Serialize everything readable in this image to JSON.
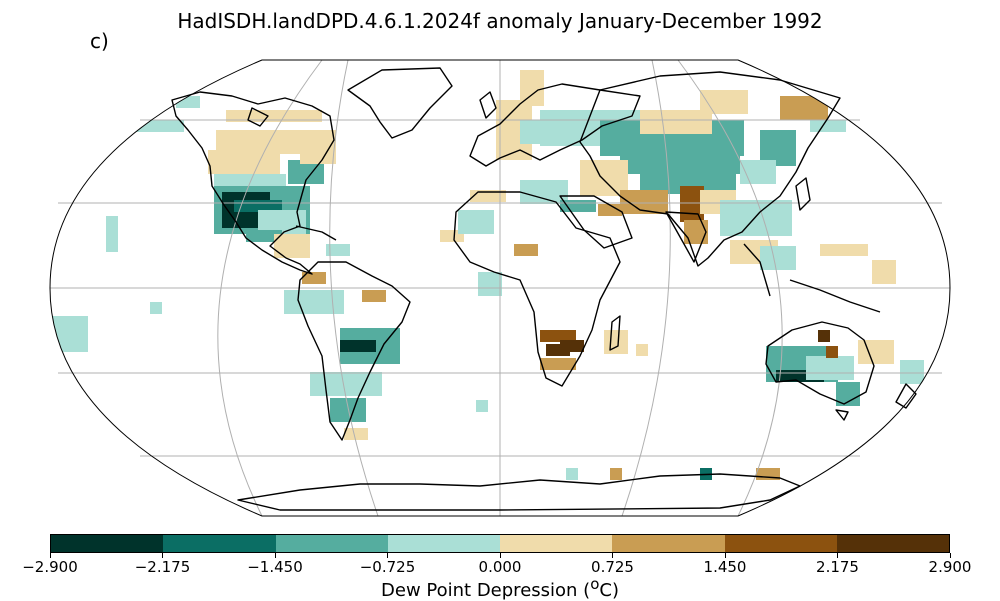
{
  "title": "HadISDH.landDPD.4.6.1.2024f anomaly January-December 1992",
  "panel_label": "c)",
  "colorbar": {
    "label_text": "Dew Point Depression (",
    "label_sup": "o",
    "label_unit": "C)",
    "ticks": [
      "−2.900",
      "−2.175",
      "−1.450",
      "−0.725",
      "0.000",
      "0.725",
      "1.450",
      "2.175",
      "2.900"
    ],
    "colors": [
      "#00332b",
      "#0b6e64",
      "#55ad9f",
      "#aadfd6",
      "#f0dcab",
      "#c99d53",
      "#8c520f",
      "#553108"
    ]
  },
  "map": {
    "projection": "Robinson",
    "variable": "dew point depression anomaly",
    "period": "January-December 1992"
  }
}
